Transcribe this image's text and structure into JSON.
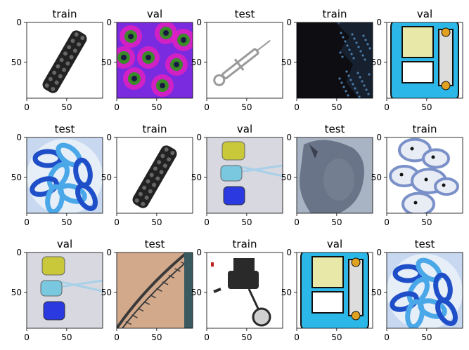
{
  "figure": {
    "rows": 3,
    "cols": 5
  },
  "chart_data": [
    {
      "type": "image",
      "title": "train",
      "content_icon": "chain-link-icon",
      "xticks": [
        0,
        50
      ],
      "yticks": [
        0,
        50
      ],
      "xlim": [
        0,
        95
      ],
      "ylim": [
        95,
        0
      ],
      "colors": [
        "#222222",
        "#ffffff"
      ]
    },
    {
      "type": "image",
      "title": "val",
      "content_icon": "coral-icon",
      "xticks": [
        0,
        50
      ],
      "yticks": [
        0,
        50
      ],
      "xlim": [
        0,
        95
      ],
      "ylim": [
        95,
        0
      ],
      "colors": [
        "#7a2be0",
        "#e020c0",
        "#3a8a2a"
      ]
    },
    {
      "type": "image",
      "title": "test",
      "content_icon": "syringe-icon",
      "xticks": [
        0,
        50
      ],
      "yticks": [
        0,
        50
      ],
      "xlim": [
        0,
        95
      ],
      "ylim": [
        95,
        0
      ],
      "colors": [
        "#9a9a9a",
        "#ffffff"
      ]
    },
    {
      "type": "image",
      "title": "train",
      "content_icon": "night-shore-icon",
      "xticks": [
        0,
        50
      ],
      "yticks": [
        0,
        50
      ],
      "xlim": [
        0,
        95
      ],
      "ylim": [
        95,
        0
      ],
      "colors": [
        "#0d0d12",
        "#4a7aa8"
      ]
    },
    {
      "type": "image",
      "title": "val",
      "content_icon": "cartoon-bus-icon",
      "xticks": [
        0,
        50
      ],
      "yticks": [
        0,
        50
      ],
      "xlim": [
        0,
        95
      ],
      "ylim": [
        95,
        0
      ],
      "colors": [
        "#2bb8e8",
        "#e8e8a8"
      ]
    },
    {
      "type": "image",
      "title": "test",
      "content_icon": "blue-jelly-icon",
      "xticks": [
        0,
        50
      ],
      "yticks": [
        0,
        50
      ],
      "xlim": [
        0,
        95
      ],
      "ylim": [
        95,
        0
      ],
      "colors": [
        "#1f4fc8",
        "#4aa8e8"
      ]
    },
    {
      "type": "image",
      "title": "train",
      "content_icon": "chain-link-icon",
      "xticks": [
        0,
        50
      ],
      "yticks": [
        0,
        50
      ],
      "xlim": [
        0,
        95
      ],
      "ylim": [
        95,
        0
      ],
      "colors": [
        "#222222",
        "#ffffff"
      ]
    },
    {
      "type": "image",
      "title": "val",
      "content_icon": "glass-charms-icon",
      "xticks": [
        0,
        50
      ],
      "yticks": [
        0,
        50
      ],
      "xlim": [
        0,
        95
      ],
      "ylim": [
        95,
        0
      ],
      "colors": [
        "#c8c83a",
        "#7ac8e0",
        "#2a3ae0"
      ]
    },
    {
      "type": "image",
      "title": "test",
      "content_icon": "rhino-icon",
      "xticks": [
        0,
        50
      ],
      "yticks": [
        0,
        50
      ],
      "xlim": [
        0,
        95
      ],
      "ylim": [
        95,
        0
      ],
      "colors": [
        "#6a7488",
        "#a8b4c4"
      ]
    },
    {
      "type": "image",
      "title": "train",
      "content_icon": "dogs-icon",
      "xticks": [
        0,
        50
      ],
      "yticks": [
        0,
        50
      ],
      "xlim": [
        0,
        95
      ],
      "ylim": [
        95,
        0
      ],
      "colors": [
        "#7a90c8",
        "#e8ecf4"
      ]
    },
    {
      "type": "image",
      "title": "val",
      "content_icon": "glass-charms-icon",
      "xticks": [
        0,
        50
      ],
      "yticks": [
        0,
        50
      ],
      "xlim": [
        0,
        95
      ],
      "ylim": [
        95,
        0
      ],
      "colors": [
        "#c8c83a",
        "#7ac8e0",
        "#2a3ae0"
      ]
    },
    {
      "type": "image",
      "title": "test",
      "content_icon": "bridge-icon",
      "xticks": [
        0,
        50
      ],
      "yticks": [
        0,
        50
      ],
      "xlim": [
        0,
        95
      ],
      "ylim": [
        95,
        0
      ],
      "colors": [
        "#c89a78",
        "#3a3a3a"
      ]
    },
    {
      "type": "image",
      "title": "train",
      "content_icon": "fishing-reel-icon",
      "xticks": [
        0,
        50
      ],
      "yticks": [
        0,
        50
      ],
      "xlim": [
        0,
        95
      ],
      "ylim": [
        95,
        0
      ],
      "colors": [
        "#2a2a2a",
        "#ffffff"
      ]
    },
    {
      "type": "image",
      "title": "val",
      "content_icon": "cartoon-bus-icon",
      "xticks": [
        0,
        50
      ],
      "yticks": [
        0,
        50
      ],
      "xlim": [
        0,
        95
      ],
      "ylim": [
        95,
        0
      ],
      "colors": [
        "#2bb8e8",
        "#e8e8a8"
      ]
    },
    {
      "type": "image",
      "title": "test",
      "content_icon": "blue-jelly-icon",
      "xticks": [
        0,
        50
      ],
      "yticks": [
        0,
        50
      ],
      "xlim": [
        0,
        95
      ],
      "ylim": [
        95,
        0
      ],
      "colors": [
        "#1f4fc8",
        "#4aa8e8"
      ]
    }
  ]
}
